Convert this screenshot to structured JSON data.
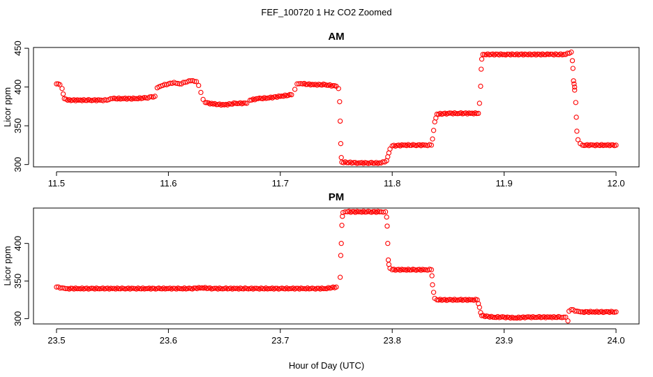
{
  "figure": {
    "title": "FEF_100720  1 Hz CO2 Zoomed",
    "xlabel": "Hour of Day (UTC)"
  },
  "colors": {
    "points": "#ff0000",
    "axes": "#000000"
  },
  "chart_data": [
    {
      "type": "scatter",
      "title": "AM",
      "xlabel": "",
      "ylabel": "Licor ppm",
      "xlim": [
        11.5,
        12.0
      ],
      "ylim": [
        297,
        451
      ],
      "xticks": [
        11.5,
        11.6,
        11.7,
        11.8,
        11.9,
        12.0
      ],
      "xtick_labels": [
        "11.5",
        "11.6",
        "11.7",
        "11.8",
        "11.9",
        "12.0"
      ],
      "yticks": [
        300,
        350,
        400,
        450
      ],
      "ytick_labels": [
        "300",
        "350",
        "400",
        "450"
      ],
      "marker": "open-circle",
      "grid": false,
      "series": [
        {
          "points": [
            [
              11.5,
              404
            ],
            [
              11.503,
              403
            ],
            [
              11.505,
              398
            ],
            [
              11.506,
              391
            ],
            [
              11.507,
              385
            ],
            [
              11.51,
              383
            ],
            [
              11.52,
              383
            ],
            [
              11.53,
              383
            ],
            [
              11.54,
              383
            ],
            [
              11.545,
              383
            ],
            [
              11.55,
              385
            ],
            [
              11.56,
              385
            ],
            [
              11.57,
              385
            ],
            [
              11.58,
              386
            ],
            [
              11.588,
              388
            ],
            [
              11.59,
              399
            ],
            [
              11.595,
              402
            ],
            [
              11.6,
              404
            ],
            [
              11.605,
              406
            ],
            [
              11.61,
              404
            ],
            [
              11.615,
              406
            ],
            [
              11.62,
              408
            ],
            [
              11.625,
              407
            ],
            [
              11.627,
              402
            ],
            [
              11.629,
              393
            ],
            [
              11.631,
              384
            ],
            [
              11.633,
              380
            ],
            [
              11.64,
              378
            ],
            [
              11.65,
              377
            ],
            [
              11.66,
              379
            ],
            [
              11.67,
              379
            ],
            [
              11.673,
              383
            ],
            [
              11.68,
              385
            ],
            [
              11.69,
              386
            ],
            [
              11.7,
              388
            ],
            [
              11.71,
              390
            ],
            [
              11.713,
              397
            ],
            [
              11.715,
              404
            ],
            [
              11.72,
              404
            ],
            [
              11.73,
              403
            ],
            [
              11.74,
              403
            ],
            [
              11.75,
              401
            ],
            [
              11.752,
              398
            ],
            [
              11.753,
              381
            ],
            [
              11.7535,
              356
            ],
            [
              11.754,
              327
            ],
            [
              11.7545,
              309
            ],
            [
              11.755,
              303
            ],
            [
              11.77,
              302
            ],
            [
              11.78,
              302
            ],
            [
              11.79,
              302
            ],
            [
              11.795,
              305
            ],
            [
              11.796,
              310
            ],
            [
              11.797,
              315
            ],
            [
              11.798,
              320
            ],
            [
              11.8,
              324
            ],
            [
              11.81,
              325
            ],
            [
              11.82,
              325
            ],
            [
              11.83,
              325
            ],
            [
              11.835,
              325
            ],
            [
              11.836,
              333
            ],
            [
              11.837,
              344
            ],
            [
              11.838,
              355
            ],
            [
              11.839,
              360
            ],
            [
              11.84,
              365
            ],
            [
              11.85,
              366
            ],
            [
              11.86,
              366
            ],
            [
              11.87,
              366
            ],
            [
              11.877,
              366
            ],
            [
              11.878,
              379
            ],
            [
              11.879,
              401
            ],
            [
              11.8795,
              423
            ],
            [
              11.88,
              436
            ],
            [
              11.881,
              442
            ],
            [
              11.9,
              442
            ],
            [
              11.92,
              442
            ],
            [
              11.94,
              442
            ],
            [
              11.955,
              442
            ],
            [
              11.96,
              445
            ],
            [
              11.961,
              434
            ],
            [
              11.9615,
              424
            ],
            [
              11.962,
              408
            ],
            [
              11.9625,
              404
            ],
            [
              11.963,
              400
            ],
            [
              11.963,
              396
            ],
            [
              11.964,
              380
            ],
            [
              11.9645,
              361
            ],
            [
              11.965,
              343
            ],
            [
              11.966,
              332
            ],
            [
              11.968,
              327
            ],
            [
              11.97,
              325
            ],
            [
              11.98,
              325
            ],
            [
              11.99,
              325
            ],
            [
              12.0,
              325
            ]
          ]
        }
      ]
    },
    {
      "type": "scatter",
      "title": "PM",
      "xlabel": "",
      "ylabel": "Licor ppm",
      "xlim": [
        23.5,
        24.0
      ],
      "ylim": [
        293,
        447
      ],
      "xticks": [
        23.5,
        23.6,
        23.7,
        23.8,
        23.9,
        24.0
      ],
      "xtick_labels": [
        "23.5",
        "23.6",
        "23.7",
        "23.8",
        "23.9",
        "24.0"
      ],
      "yticks": [
        300,
        350,
        400
      ],
      "ytick_labels": [
        "300",
        "350",
        "400"
      ],
      "marker": "open-circle",
      "grid": false,
      "series": [
        {
          "points": [
            [
              23.5,
              342
            ],
            [
              23.505,
              341
            ],
            [
              23.51,
              340
            ],
            [
              23.52,
              340
            ],
            [
              23.53,
              340
            ],
            [
              23.54,
              340
            ],
            [
              23.55,
              340
            ],
            [
              23.56,
              340
            ],
            [
              23.57,
              340
            ],
            [
              23.58,
              340
            ],
            [
              23.59,
              340
            ],
            [
              23.6,
              340
            ],
            [
              23.61,
              340
            ],
            [
              23.62,
              340
            ],
            [
              23.63,
              341
            ],
            [
              23.64,
              340
            ],
            [
              23.65,
              340
            ],
            [
              23.66,
              340
            ],
            [
              23.67,
              340
            ],
            [
              23.68,
              340
            ],
            [
              23.69,
              340
            ],
            [
              23.7,
              340
            ],
            [
              23.71,
              340
            ],
            [
              23.72,
              340
            ],
            [
              23.73,
              340
            ],
            [
              23.74,
              340
            ],
            [
              23.75,
              342
            ],
            [
              23.7535,
              355
            ],
            [
              23.754,
              384
            ],
            [
              23.7545,
              400
            ],
            [
              23.755,
              424
            ],
            [
              23.7555,
              436
            ],
            [
              23.756,
              441
            ],
            [
              23.76,
              442
            ],
            [
              23.77,
              442
            ],
            [
              23.78,
              442
            ],
            [
              23.79,
              442
            ],
            [
              23.794,
              442
            ],
            [
              23.795,
              435
            ],
            [
              23.7955,
              423
            ],
            [
              23.796,
              400
            ],
            [
              23.7965,
              378
            ],
            [
              23.797,
              372
            ],
            [
              23.798,
              367
            ],
            [
              23.8,
              365
            ],
            [
              23.81,
              365
            ],
            [
              23.82,
              365
            ],
            [
              23.83,
              365
            ],
            [
              23.835,
              365
            ],
            [
              23.8355,
              357
            ],
            [
              23.836,
              345
            ],
            [
              23.837,
              335
            ],
            [
              23.838,
              327
            ],
            [
              23.84,
              325
            ],
            [
              23.85,
              325
            ],
            [
              23.86,
              325
            ],
            [
              23.87,
              325
            ],
            [
              23.876,
              325
            ],
            [
              23.877,
              320
            ],
            [
              23.878,
              315
            ],
            [
              23.879,
              308
            ],
            [
              23.88,
              304
            ],
            [
              23.89,
              302
            ],
            [
              23.9,
              302
            ],
            [
              23.91,
              301
            ],
            [
              23.92,
              302
            ],
            [
              23.93,
              302
            ],
            [
              23.94,
              302
            ],
            [
              23.95,
              302
            ],
            [
              23.955,
              302
            ],
            [
              23.957,
              297
            ],
            [
              23.958,
              310
            ],
            [
              23.96,
              312
            ],
            [
              23.965,
              310
            ],
            [
              23.97,
              309
            ],
            [
              23.98,
              309
            ],
            [
              23.99,
              309
            ],
            [
              24.0,
              309
            ]
          ]
        }
      ]
    }
  ]
}
